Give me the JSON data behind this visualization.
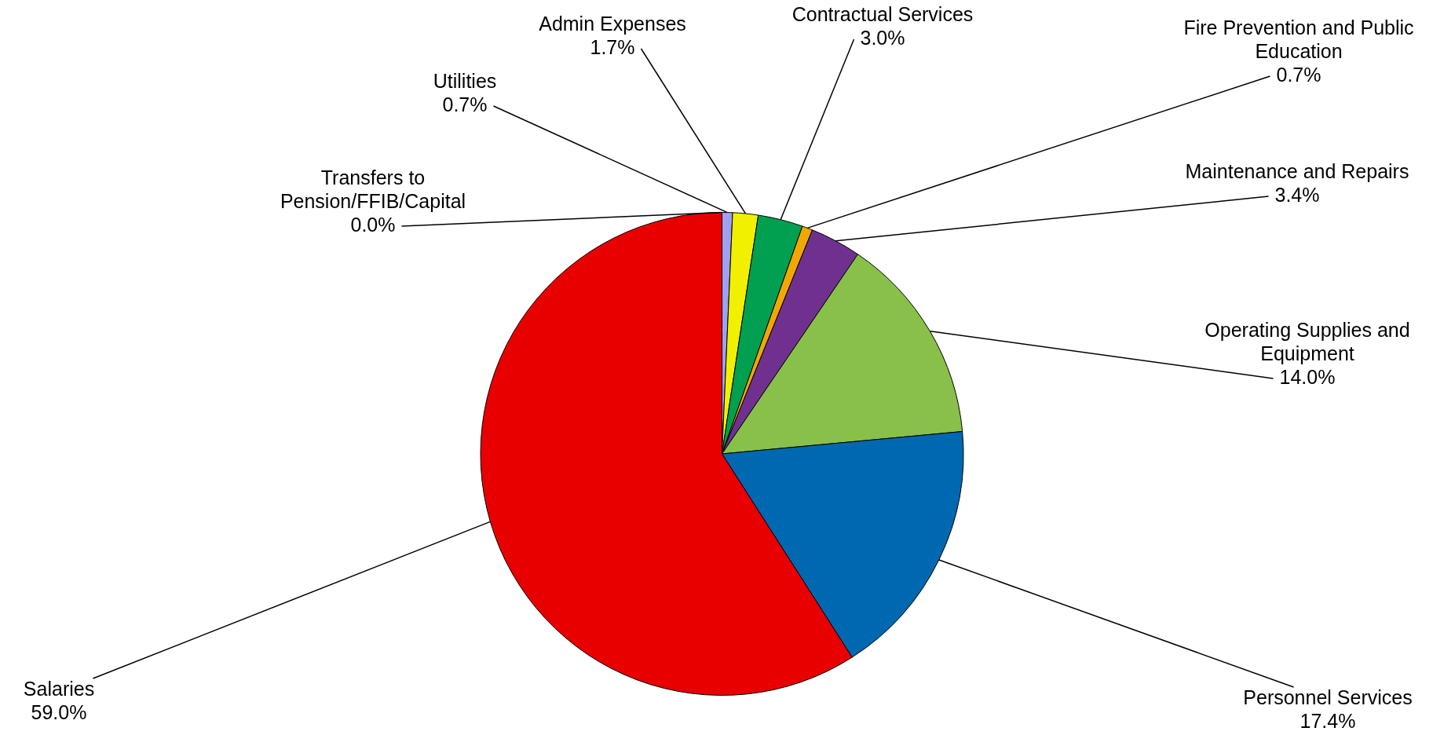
{
  "chart_data": {
    "type": "pie",
    "categories": [
      "Transfers to Pension/FFIB/Capital",
      "Utilities",
      "Admin Expenses",
      "Contractual Services",
      "Fire Prevention and Public Education",
      "Maintenance and Repairs",
      "Operating Supplies and Equipment",
      "Personnel Services",
      "Salaries"
    ],
    "values": [
      0.0,
      0.7,
      1.7,
      3.0,
      0.7,
      3.4,
      14.0,
      17.4,
      59.0
    ],
    "value_labels": [
      "0.0%",
      "0.7%",
      "1.7%",
      "3.0%",
      "0.7%",
      "3.4%",
      "14.0%",
      "17.4%",
      "59.0%"
    ],
    "colors": [
      "#4f81bd",
      "#a0a0f0",
      "#f0f000",
      "#00a050",
      "#f0a800",
      "#703090",
      "#88c04a",
      "#0068b0",
      "#e80000"
    ],
    "legend": false
  }
}
